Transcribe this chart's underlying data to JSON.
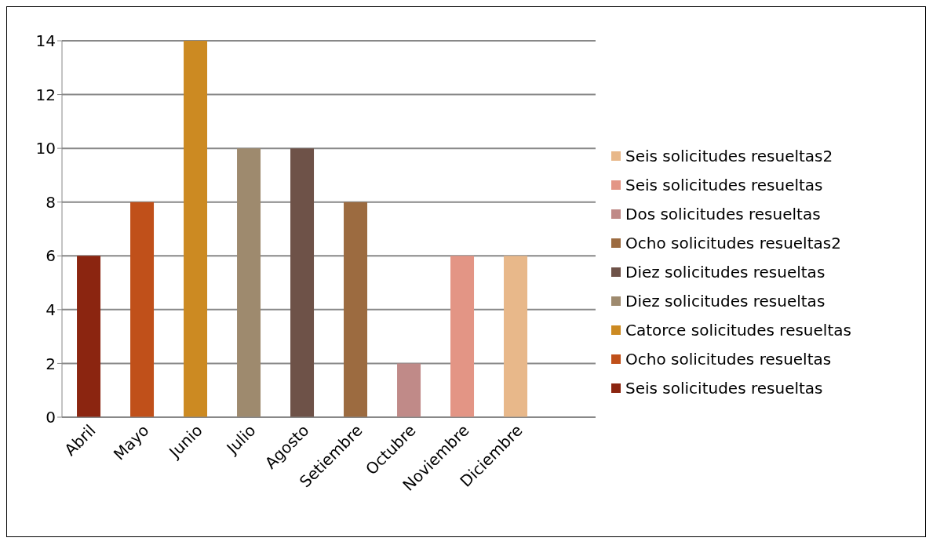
{
  "chart_data": {
    "type": "bar",
    "categories": [
      "Abril",
      "Mayo",
      "Junio",
      "Julio",
      "Agosto",
      "Setiembre",
      "Octubre",
      "Noviembre",
      "Diciembre",
      null
    ],
    "series": [
      {
        "name": "Seis solicitudes resueltas",
        "color": "#8b2510",
        "values": [
          6,
          null,
          null,
          null,
          null,
          null,
          null,
          null,
          null,
          null
        ]
      },
      {
        "name": "Ocho solicitudes resueltas",
        "color": "#c0501a",
        "values": [
          null,
          8,
          null,
          null,
          null,
          null,
          null,
          null,
          null,
          null
        ]
      },
      {
        "name": "Catorce solicitudes resueltas",
        "color": "#cc8a22",
        "values": [
          null,
          null,
          14,
          null,
          null,
          null,
          null,
          null,
          null,
          null
        ]
      },
      {
        "name": "Diez solicitudes resueltas",
        "color": "#9e8a6e",
        "values": [
          null,
          null,
          null,
          10,
          null,
          null,
          null,
          null,
          null,
          null
        ]
      },
      {
        "name": "Diez solicitudes resueltas",
        "color": "#6e5248",
        "values": [
          null,
          null,
          null,
          null,
          10,
          null,
          null,
          null,
          null,
          null
        ]
      },
      {
        "name": "Ocho solicitudes resueltas2",
        "color": "#9c6b40",
        "values": [
          null,
          null,
          null,
          null,
          null,
          8,
          null,
          null,
          null,
          null
        ]
      },
      {
        "name": "Dos solicitudes resueltas",
        "color": "#c08a88",
        "values": [
          null,
          null,
          null,
          null,
          null,
          null,
          2,
          null,
          null,
          null
        ]
      },
      {
        "name": "Seis solicitudes resueltas",
        "color": "#e39585",
        "values": [
          null,
          null,
          null,
          null,
          null,
          null,
          null,
          6,
          null,
          null
        ]
      },
      {
        "name": "Seis solicitudes resueltas2",
        "color": "#e8b88a",
        "values": [
          null,
          null,
          null,
          null,
          null,
          null,
          null,
          null,
          6,
          null
        ]
      }
    ],
    "ylim": [
      0,
      14
    ],
    "yticks": [
      0,
      2,
      4,
      6,
      8,
      10,
      12,
      14
    ],
    "grid": "y",
    "legend": "right"
  }
}
